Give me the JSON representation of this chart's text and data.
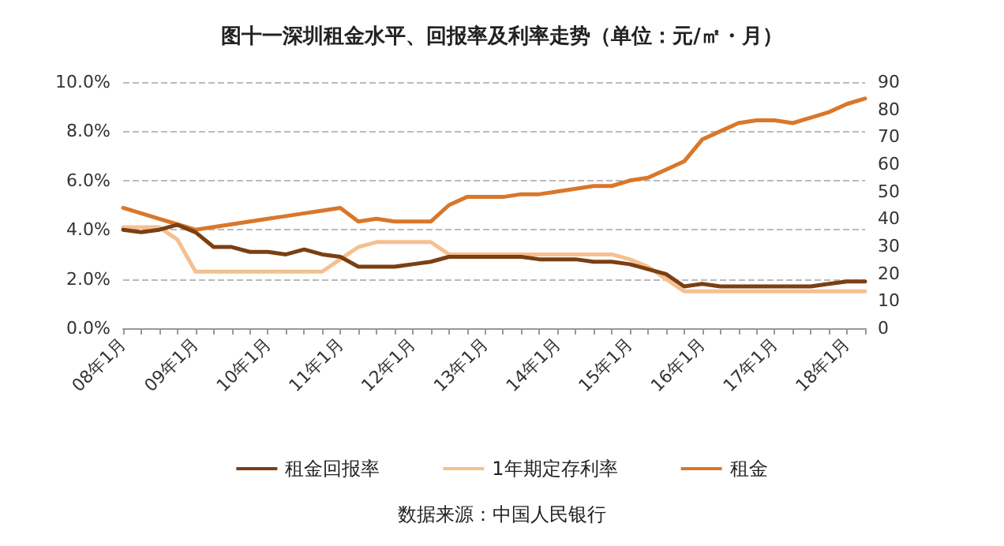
{
  "chart_data": {
    "type": "line",
    "title": "图十一深圳租金水平、回报率及利率走势（单位：元/㎡・月）",
    "categories": [
      "08年1月",
      null,
      null,
      null,
      "09年1月",
      null,
      null,
      null,
      "10年1月",
      null,
      null,
      null,
      "11年1月",
      null,
      null,
      null,
      "12年1月",
      null,
      null,
      null,
      "13年1月",
      null,
      null,
      null,
      "14年1月",
      null,
      null,
      null,
      "15年1月",
      null,
      null,
      null,
      "16年1月",
      null,
      null,
      null,
      "17年1月",
      null,
      null,
      null,
      "18年1月",
      null
    ],
    "series": [
      {
        "name": "租金回报率",
        "color": "#7b3f12",
        "values": [
          4.0,
          3.9,
          4.0,
          4.2,
          3.9,
          3.3,
          3.3,
          3.1,
          3.1,
          3.0,
          3.2,
          3.0,
          2.9,
          2.5,
          2.5,
          2.5,
          2.6,
          2.7,
          2.9,
          2.9,
          2.9,
          2.9,
          2.9,
          2.8,
          2.8,
          2.8,
          2.7,
          2.7,
          2.6,
          2.4,
          2.2,
          1.7,
          1.8,
          1.7,
          1.7,
          1.7,
          1.7,
          1.7,
          1.7,
          1.8,
          1.9,
          1.9
        ]
      },
      {
        "name": "1年期定存利率",
        "color": "#f5c08f",
        "values": [
          4.1,
          4.1,
          4.1,
          3.6,
          2.3,
          2.3,
          2.3,
          2.3,
          2.3,
          2.3,
          2.3,
          2.3,
          2.8,
          3.3,
          3.5,
          3.5,
          3.5,
          3.5,
          3.0,
          3.0,
          3.0,
          3.0,
          3.0,
          3.0,
          3.0,
          3.0,
          3.0,
          3.0,
          2.8,
          2.5,
          2.0,
          1.5,
          1.5,
          1.5,
          1.5,
          1.5,
          1.5,
          1.5,
          1.5,
          1.5,
          1.5,
          1.5
        ]
      },
      {
        "name": "租金",
        "color": "#d9772a",
        "axis": "y2",
        "values": [
          44,
          42,
          40,
          38,
          36,
          37,
          38,
          39,
          40,
          41,
          42,
          43,
          44,
          39,
          40,
          39,
          39,
          39,
          45,
          48,
          48,
          48,
          49,
          49,
          50,
          51,
          52,
          52,
          54,
          55,
          58,
          61,
          69,
          72,
          75,
          76,
          76,
          75,
          77,
          79,
          82,
          84
        ]
      }
    ],
    "ylim": [
      0,
      10
    ],
    "yticks": [
      {
        "value": 0,
        "label": "0.0%"
      },
      {
        "value": 2,
        "label": "2.0%"
      },
      {
        "value": 4,
        "label": "4.0%"
      },
      {
        "value": 6,
        "label": "6.0%"
      },
      {
        "value": 8,
        "label": "8.0%"
      },
      {
        "value": 10,
        "label": "10.0%"
      }
    ],
    "y2lim": [
      0,
      90
    ],
    "y2ticks": [
      0,
      10,
      20,
      30,
      40,
      50,
      60,
      70,
      80,
      90
    ],
    "grid": "y",
    "legend": "bottom",
    "marker": "none",
    "line_style": "solid",
    "annotations": [
      "数据来源：中国人民银行"
    ]
  }
}
